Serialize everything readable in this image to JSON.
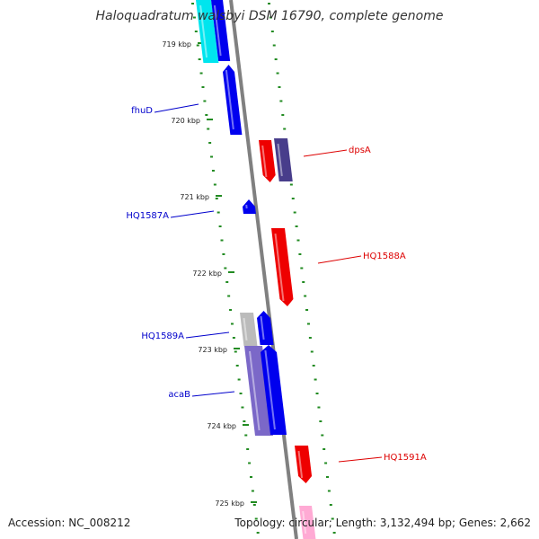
{
  "title": "Haloquadratum walsbyi DSM 16790, complete genome",
  "accession": "Accession: NC_008212",
  "topology": "Topology: circular; Length: 3,132,494 bp; Genes: 2,662",
  "colors": {
    "backbone": "#808080",
    "ticks": "#228B22",
    "forward_label": "#0000CC",
    "reverse_label": "#DD0000"
  },
  "ruler": [
    {
      "label": "719 kbp"
    },
    {
      "label": "720 kbp"
    },
    {
      "label": "721 kbp"
    },
    {
      "label": "722 kbp"
    },
    {
      "label": "723 kbp"
    },
    {
      "label": "724 kbp"
    },
    {
      "label": "725 kbp"
    }
  ],
  "gene_labels": [
    {
      "text": "fhuD",
      "strand": "forward"
    },
    {
      "text": "HQ1587A",
      "strand": "forward"
    },
    {
      "text": "HQ1589A",
      "strand": "forward"
    },
    {
      "text": "acaB",
      "strand": "forward"
    },
    {
      "text": "dpsA",
      "strand": "reverse"
    },
    {
      "text": "HQ1588A",
      "strand": "reverse"
    },
    {
      "text": "HQ1591A",
      "strand": "reverse"
    }
  ]
}
